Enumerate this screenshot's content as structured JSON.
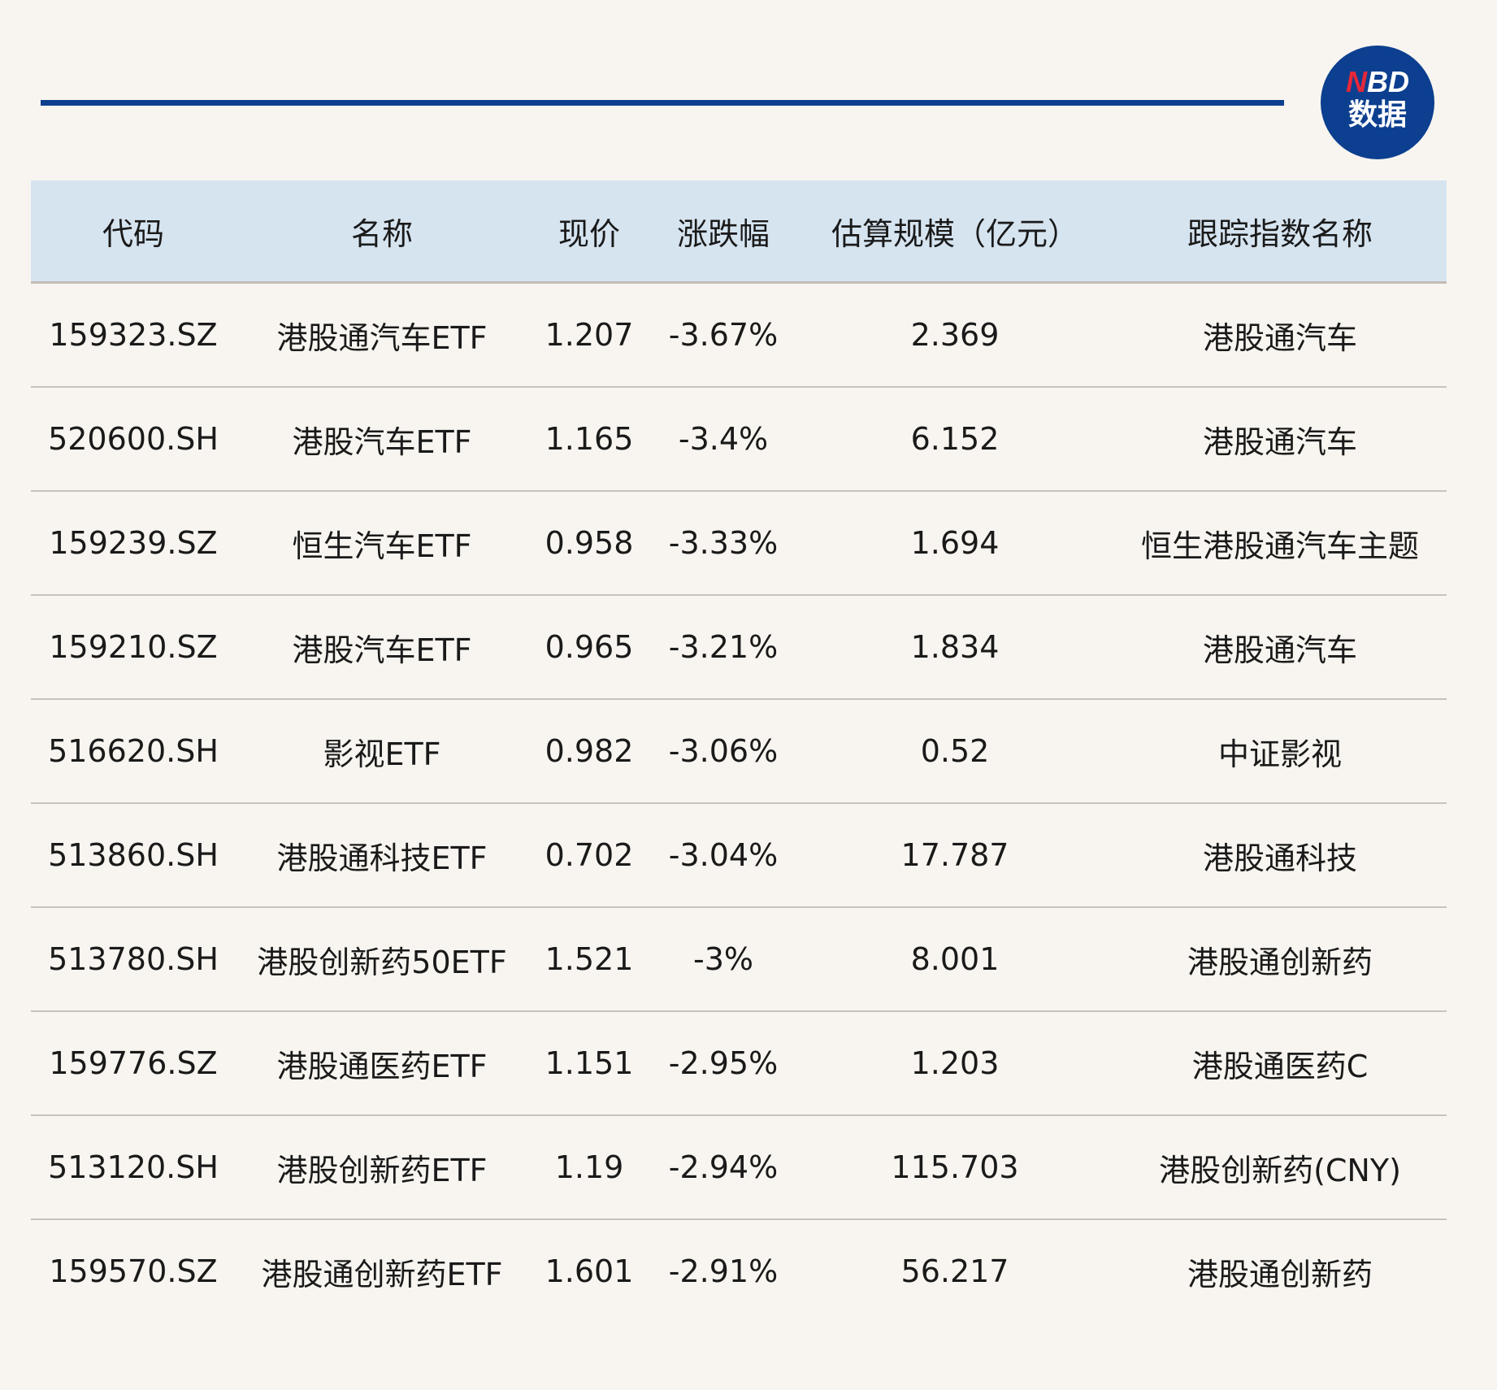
{
  "brand": {
    "logo_text_top": "NBD",
    "logo_text_bottom": "数据",
    "accent": "#0f3f8f",
    "logo_red": "#e5283a"
  },
  "table": {
    "headers": [
      "代码",
      "名称",
      "现价",
      "涨跌幅",
      "估算规模（亿元）",
      "跟踪指数名称"
    ],
    "rows": [
      [
        "159323.SZ",
        "港股通汽车ETF",
        "1.207",
        "-3.67%",
        "2.369",
        "港股通汽车"
      ],
      [
        "520600.SH",
        "港股汽车ETF",
        "1.165",
        "-3.4%",
        "6.152",
        "港股通汽车"
      ],
      [
        "159239.SZ",
        "恒生汽车ETF",
        "0.958",
        "-3.33%",
        "1.694",
        "恒生港股通汽车主题"
      ],
      [
        "159210.SZ",
        "港股汽车ETF",
        "0.965",
        "-3.21%",
        "1.834",
        "港股通汽车"
      ],
      [
        "516620.SH",
        "影视ETF",
        "0.982",
        "-3.06%",
        "0.52",
        "中证影视"
      ],
      [
        "513860.SH",
        "港股通科技ETF",
        "0.702",
        "-3.04%",
        "17.787",
        "港股通科技"
      ],
      [
        "513780.SH",
        "港股创新药50ETF",
        "1.521",
        "-3%",
        "8.001",
        "港股通创新药"
      ],
      [
        "159776.SZ",
        "港股通医药ETF",
        "1.151",
        "-2.95%",
        "1.203",
        "港股通医药C"
      ],
      [
        "513120.SH",
        "港股创新药ETF",
        "1.19",
        "-2.94%",
        "115.703",
        "港股创新药(CNY)"
      ],
      [
        "159570.SZ",
        "港股通创新药ETF",
        "1.601",
        "-2.91%",
        "56.217",
        "港股通创新药"
      ]
    ]
  }
}
